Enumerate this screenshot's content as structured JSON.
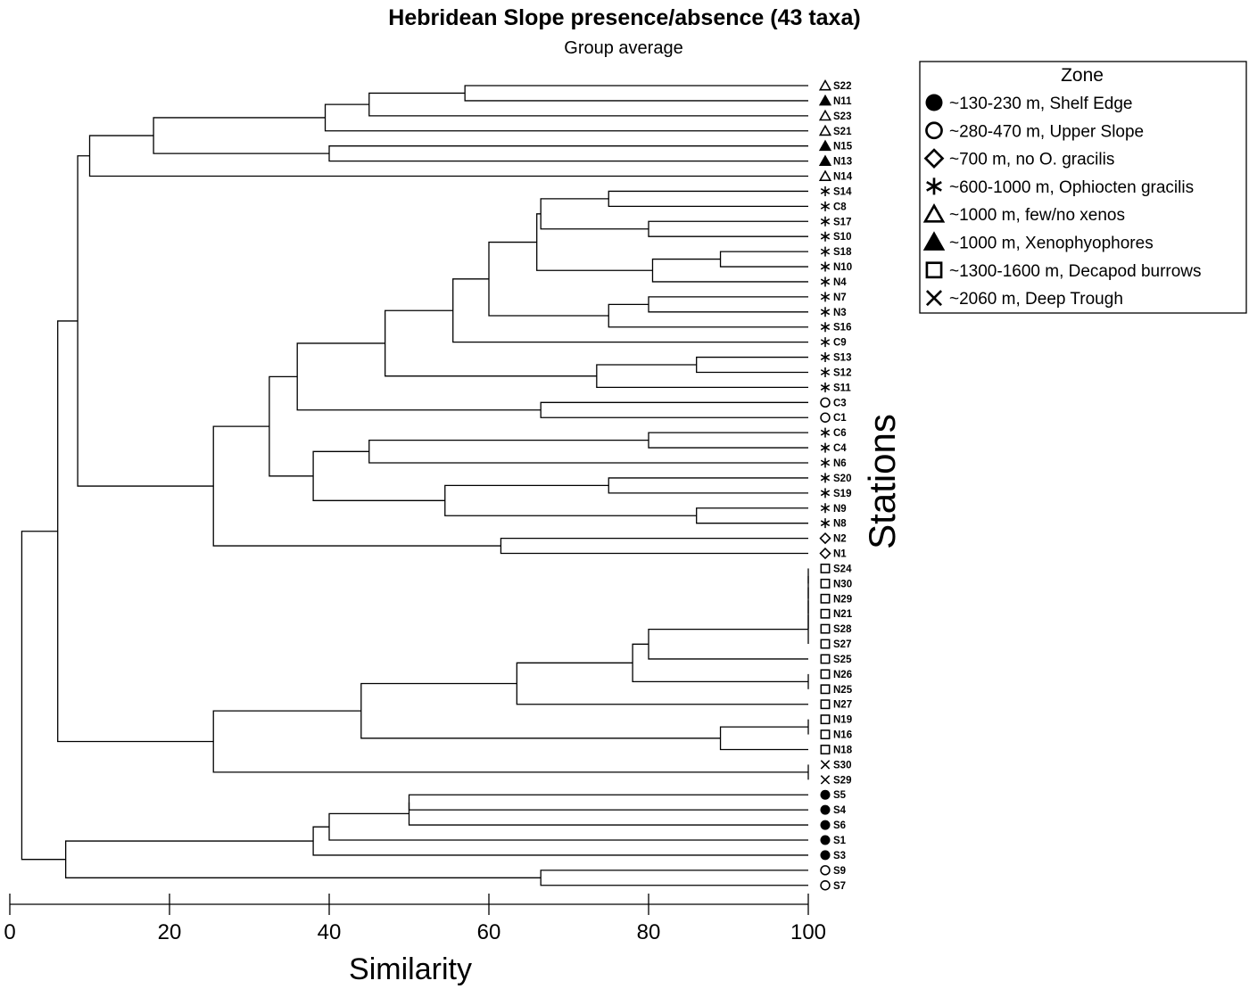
{
  "chart_data": {
    "type": "dendrogram",
    "title": "Hebridean Slope presence/absence (43 taxa)",
    "subtitle": "Group average",
    "xlabel": "Similarity",
    "ylabel": "Stations",
    "xlim": [
      0,
      100
    ],
    "xticks": [
      0,
      20,
      40,
      60,
      80,
      100
    ],
    "legend": {
      "title": "Zone",
      "placement": "top-right",
      "items": [
        {
          "symbol": "filled-circle",
          "label": "~130-230 m, Shelf Edge"
        },
        {
          "symbol": "open-circle",
          "label": "~280-470 m, Upper Slope"
        },
        {
          "symbol": "open-diamond",
          "label": "~700 m, no O. gracilis"
        },
        {
          "symbol": "asterisk",
          "label": "~600-1000 m, Ophiocten gracilis"
        },
        {
          "symbol": "open-triangle",
          "label": "~1000 m, few/no xenos"
        },
        {
          "symbol": "filled-triangle",
          "label": "~1000 m, Xenophyophores"
        },
        {
          "symbol": "open-square",
          "label": "~1300-1600 m, Decapod burrows"
        },
        {
          "symbol": "cross",
          "label": "~2060 m, Deep Trough"
        }
      ]
    },
    "leaves": [
      {
        "name": "S22",
        "symbol": "open-triangle"
      },
      {
        "name": "N11",
        "symbol": "filled-triangle"
      },
      {
        "name": "S23",
        "symbol": "open-triangle"
      },
      {
        "name": "S21",
        "symbol": "open-triangle"
      },
      {
        "name": "N15",
        "symbol": "filled-triangle"
      },
      {
        "name": "N13",
        "symbol": "filled-triangle"
      },
      {
        "name": "N14",
        "symbol": "open-triangle"
      },
      {
        "name": "S14",
        "symbol": "asterisk"
      },
      {
        "name": "C8",
        "symbol": "asterisk"
      },
      {
        "name": "S17",
        "symbol": "asterisk"
      },
      {
        "name": "S10",
        "symbol": "asterisk"
      },
      {
        "name": "S18",
        "symbol": "asterisk"
      },
      {
        "name": "N10",
        "symbol": "asterisk"
      },
      {
        "name": "N4",
        "symbol": "asterisk"
      },
      {
        "name": "N7",
        "symbol": "asterisk"
      },
      {
        "name": "N3",
        "symbol": "asterisk"
      },
      {
        "name": "S16",
        "symbol": "asterisk"
      },
      {
        "name": "C9",
        "symbol": "asterisk"
      },
      {
        "name": "S13",
        "symbol": "asterisk"
      },
      {
        "name": "S12",
        "symbol": "asterisk"
      },
      {
        "name": "S11",
        "symbol": "asterisk"
      },
      {
        "name": "C3",
        "symbol": "open-circle"
      },
      {
        "name": "C1",
        "symbol": "open-circle"
      },
      {
        "name": "C6",
        "symbol": "asterisk"
      },
      {
        "name": "C4",
        "symbol": "asterisk"
      },
      {
        "name": "N6",
        "symbol": "asterisk"
      },
      {
        "name": "S20",
        "symbol": "asterisk"
      },
      {
        "name": "S19",
        "symbol": "asterisk"
      },
      {
        "name": "N9",
        "symbol": "asterisk"
      },
      {
        "name": "N8",
        "symbol": "asterisk"
      },
      {
        "name": "N2",
        "symbol": "open-diamond"
      },
      {
        "name": "N1",
        "symbol": "open-diamond"
      },
      {
        "name": "S24",
        "symbol": "open-square"
      },
      {
        "name": "N30",
        "symbol": "open-square"
      },
      {
        "name": "N29",
        "symbol": "open-square"
      },
      {
        "name": "N21",
        "symbol": "open-square"
      },
      {
        "name": "S28",
        "symbol": "open-square"
      },
      {
        "name": "S27",
        "symbol": "open-square"
      },
      {
        "name": "S25",
        "symbol": "open-square"
      },
      {
        "name": "N26",
        "symbol": "open-square"
      },
      {
        "name": "N25",
        "symbol": "open-square"
      },
      {
        "name": "N27",
        "symbol": "open-square"
      },
      {
        "name": "N19",
        "symbol": "open-square"
      },
      {
        "name": "N16",
        "symbol": "open-square"
      },
      {
        "name": "N18",
        "symbol": "open-square"
      },
      {
        "name": "S30",
        "symbol": "cross"
      },
      {
        "name": "S29",
        "symbol": "cross"
      },
      {
        "name": "S5",
        "symbol": "filled-circle"
      },
      {
        "name": "S4",
        "symbol": "filled-circle"
      },
      {
        "name": "S6",
        "symbol": "filled-circle"
      },
      {
        "name": "S1",
        "symbol": "filled-circle"
      },
      {
        "name": "S3",
        "symbol": "filled-circle"
      },
      {
        "name": "S9",
        "symbol": "open-circle"
      },
      {
        "name": "S7",
        "symbol": "open-circle"
      }
    ],
    "merges": [
      {
        "a": "S22",
        "b": "N11",
        "sim": 57
      },
      {
        "a": "m0",
        "b": "S23",
        "sim": 45
      },
      {
        "a": "m1",
        "b": "S21",
        "sim": 39.5
      },
      {
        "a": "N15",
        "b": "N13",
        "sim": 40
      },
      {
        "a": "m2",
        "b": "m3",
        "sim": 18
      },
      {
        "a": "m4",
        "b": "N14",
        "sim": 10
      },
      {
        "a": "S14",
        "b": "C8",
        "sim": 75
      },
      {
        "a": "S17",
        "b": "S10",
        "sim": 80
      },
      {
        "a": "m6",
        "b": "m7",
        "sim": 66.5
      },
      {
        "a": "S18",
        "b": "N10",
        "sim": 89
      },
      {
        "a": "m9",
        "b": "N4",
        "sim": 80.5
      },
      {
        "a": "m8",
        "b": "m10",
        "sim": 66
      },
      {
        "a": "N7",
        "b": "N3",
        "sim": 80
      },
      {
        "a": "m12",
        "b": "S16",
        "sim": 75
      },
      {
        "a": "m11",
        "b": "m13",
        "sim": 60
      },
      {
        "a": "m14",
        "b": "C9",
        "sim": 55.5
      },
      {
        "a": "S13",
        "b": "S12",
        "sim": 86
      },
      {
        "a": "m16",
        "b": "S11",
        "sim": 73.5
      },
      {
        "a": "m15",
        "b": "m17",
        "sim": 47
      },
      {
        "a": "C3",
        "b": "C1",
        "sim": 66.5
      },
      {
        "a": "m18",
        "b": "m19",
        "sim": 36
      },
      {
        "a": "C6",
        "b": "C4",
        "sim": 80
      },
      {
        "a": "m21",
        "b": "N6",
        "sim": 45
      },
      {
        "a": "S20",
        "b": "S19",
        "sim": 75
      },
      {
        "a": "N9",
        "b": "N8",
        "sim": 86
      },
      {
        "a": "m23",
        "b": "m24",
        "sim": 54.5
      },
      {
        "a": "m22",
        "b": "m25",
        "sim": 38
      },
      {
        "a": "m20",
        "b": "m26",
        "sim": 32.5
      },
      {
        "a": "N2",
        "b": "N1",
        "sim": 61.5
      },
      {
        "a": "m27",
        "b": "m28",
        "sim": 25.5
      },
      {
        "a": "m5",
        "b": "m29",
        "sim": 8.5
      },
      {
        "a": "S24",
        "b": "N30",
        "sim": 100
      },
      {
        "a": "m31",
        "b": "N29",
        "sim": 100
      },
      {
        "a": "m32",
        "b": "N21",
        "sim": 100
      },
      {
        "a": "m33",
        "b": "S28",
        "sim": 100
      },
      {
        "a": "m34",
        "b": "S27",
        "sim": 100
      },
      {
        "a": "m35",
        "b": "S25",
        "sim": 80
      },
      {
        "a": "N26",
        "b": "N25",
        "sim": 100
      },
      {
        "a": "m36",
        "b": "m37",
        "sim": 78
      },
      {
        "a": "m38",
        "b": "N27",
        "sim": 63.5
      },
      {
        "a": "N19",
        "b": "N16",
        "sim": 100
      },
      {
        "a": "m40",
        "b": "N18",
        "sim": 89
      },
      {
        "a": "m39",
        "b": "m41",
        "sim": 44
      },
      {
        "a": "S30",
        "b": "S29",
        "sim": 100
      },
      {
        "a": "m42",
        "b": "m43",
        "sim": 25.5
      },
      {
        "a": "m30",
        "b": "m44",
        "sim": 6
      },
      {
        "a": "S5",
        "b": "S4",
        "sim": 50
      },
      {
        "a": "m46",
        "b": "S6",
        "sim": 50
      },
      {
        "a": "m47",
        "b": "S1",
        "sim": 40
      },
      {
        "a": "m48",
        "b": "S3",
        "sim": 38
      },
      {
        "a": "S9",
        "b": "S7",
        "sim": 66.5
      },
      {
        "a": "m49",
        "b": "m50",
        "sim": 7
      },
      {
        "a": "m45",
        "b": "m51",
        "sim": 1.5
      }
    ]
  }
}
